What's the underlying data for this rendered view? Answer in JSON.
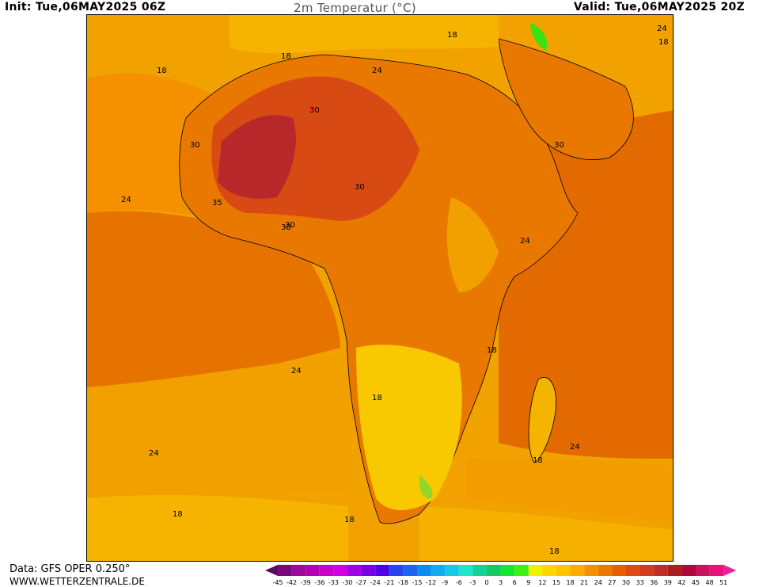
{
  "header": {
    "init": "Init: Tue,06MAY2025 06Z",
    "title": "2m Temperatur (°C)",
    "valid": "Valid: Tue,06MAY2025 20Z"
  },
  "footer": {
    "data_source": "Data: GFS OPER 0.250°",
    "website": "WWW.WETTERZENTRALE.DE"
  },
  "contour_labels": [
    "18",
    "18",
    "18",
    "24",
    "24",
    "18",
    "30",
    "30",
    "30",
    "30",
    "24",
    "35",
    "30",
    "30",
    "24",
    "24",
    "18",
    "24",
    "18",
    "24",
    "18",
    "18",
    "18",
    "18",
    "24"
  ],
  "legend": {
    "ticks": [
      "-45",
      "-42",
      "-39",
      "-36",
      "-33",
      "-30",
      "-27",
      "-24",
      "-21",
      "-18",
      "-15",
      "-12",
      "-9",
      "-6",
      "-3",
      "0",
      "3",
      "6",
      "9",
      "12",
      "15",
      "18",
      "21",
      "24",
      "27",
      "30",
      "33",
      "36",
      "39",
      "42",
      "45",
      "48",
      "51"
    ],
    "colors": [
      "#5a0a5a",
      "#780a78",
      "#9b0a9b",
      "#b400b4",
      "#c800c8",
      "#d200e6",
      "#a000e6",
      "#7800e6",
      "#5000e6",
      "#2846f0",
      "#1e64f0",
      "#0a8cf0",
      "#14aaf0",
      "#14c8e6",
      "#1ee6c8",
      "#14d296",
      "#14c864",
      "#14e632",
      "#3cf014",
      "#f0f000",
      "#ffd700",
      "#ffc300",
      "#ffaa00",
      "#f59100",
      "#eb7800",
      "#e65f00",
      "#dc4b14",
      "#d23c1e",
      "#be2d28",
      "#aa1e1e",
      "#aa0a3c",
      "#c8145a",
      "#e61478",
      "#f01e96"
    ]
  }
}
